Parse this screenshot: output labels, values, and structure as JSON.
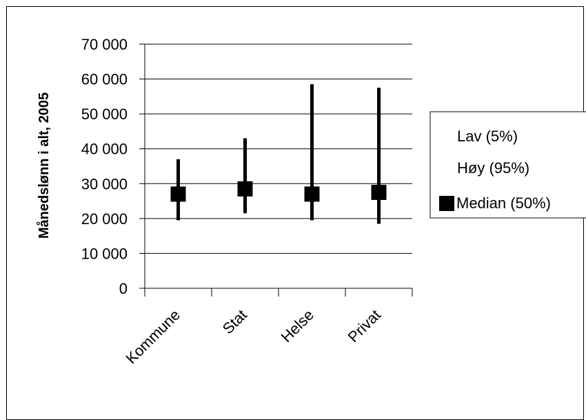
{
  "chart_data": {
    "type": "stock",
    "title": "",
    "xlabel": "",
    "ylabel": "Månedslønn i alt, 2005",
    "ylim": [
      0,
      70000
    ],
    "y_ticks": [
      0,
      10000,
      20000,
      30000,
      40000,
      50000,
      60000,
      70000
    ],
    "y_tick_labels": [
      "0",
      "10 000",
      "20 000",
      "30 000",
      "40 000",
      "50 000",
      "60 000",
      "70 000"
    ],
    "grid": true,
    "legend_position": "right",
    "categories": [
      "Kommune",
      "Stat",
      "Helse",
      "Privat"
    ],
    "series": [
      {
        "name": "Lav (5%)",
        "values": [
          19500,
          21500,
          19500,
          18500
        ]
      },
      {
        "name": "Høy (95%)",
        "values": [
          37000,
          43000,
          58500,
          57500
        ]
      },
      {
        "name": "Median (50%)",
        "values": [
          27000,
          28500,
          27000,
          27500
        ]
      }
    ],
    "colors": {
      "line": "#000000",
      "marker": "#000000",
      "grid": "#000000"
    }
  }
}
